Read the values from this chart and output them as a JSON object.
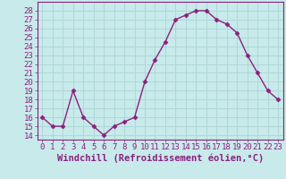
{
  "x": [
    0,
    1,
    2,
    3,
    4,
    5,
    6,
    7,
    8,
    9,
    10,
    11,
    12,
    13,
    14,
    15,
    16,
    17,
    18,
    19,
    20,
    21,
    22,
    23
  ],
  "y": [
    16,
    15,
    15,
    19,
    16,
    15,
    14,
    15,
    15.5,
    16,
    20,
    22.5,
    24.5,
    27,
    27.5,
    28,
    28,
    27,
    26.5,
    25.5,
    23,
    21,
    19,
    18
  ],
  "line_color": "#8b2080",
  "marker": "D",
  "marker_size": 2.5,
  "bg_color": "#c8eaea",
  "grid_color": "#b0d8d8",
  "xlabel": "Windchill (Refroidissement éolien,°C)",
  "xlabel_fontsize": 7.5,
  "xticks": [
    0,
    1,
    2,
    3,
    4,
    5,
    6,
    7,
    8,
    9,
    10,
    11,
    12,
    13,
    14,
    15,
    16,
    17,
    18,
    19,
    20,
    21,
    22,
    23
  ],
  "yticks": [
    14,
    15,
    16,
    17,
    18,
    19,
    20,
    21,
    22,
    23,
    24,
    25,
    26,
    27,
    28
  ],
  "ylim": [
    13.5,
    29.0
  ],
  "xlim": [
    -0.5,
    23.5
  ],
  "tick_fontsize": 6.5,
  "axes_color": "#8b2080",
  "spine_color": "#8b2080",
  "linewidth": 1.0
}
